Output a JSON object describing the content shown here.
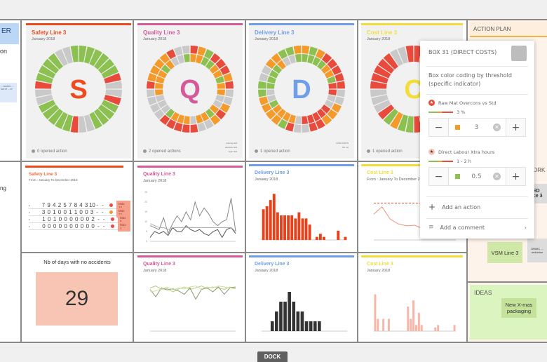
{
  "colors": {
    "G": "#8cc152",
    "R": "#e84b3c",
    "O": "#f39a2b",
    "X": "#c9c9c9",
    "safety": "#ee4a1e",
    "quality": "#d45a9a",
    "delivery": "#6f9ee8",
    "cost": "#f2dd3a"
  },
  "left_panel": {
    "header": "ER",
    "text1": "on",
    "text2": "ng",
    "note": "... screen ... out of ... er"
  },
  "donuts": [
    {
      "title": "Safety Line 3",
      "sub": "January 2018",
      "letter": "S",
      "color_key": "safety",
      "footer": "0 opened action",
      "legend": [
        "",
        "",
        ""
      ],
      "rings": [
        "GGGGGGRXXRGGGGXXRGGGGGXXRGGGGXXG"
      ]
    },
    {
      "title": "Quality Line 3",
      "sub": "January 2018",
      "letter": "Q",
      "color_key": "quality",
      "footer": "2 opened actions",
      "legend": [
        "training skill",
        "effective skill",
        "login skill"
      ],
      "rings": [
        "ROGRRRORXXOROXXRRRRRXXXXROOOORXX",
        "OOGGOOGOOXXOGOOXOOOGXXXOOOOGOXXG"
      ]
    },
    {
      "title": "Delivery Line 3",
      "sub": "January 2018",
      "letter": "D",
      "color_key": "delivery",
      "footer": "1 opened action",
      "legend": [
        "LATE PARTS",
        "OK 1st"
      ],
      "rings": [
        "OGORRRRRXXOOORRXXRGOOOOGGXXOOGGO",
        "GGGGOOGRRXXRRRRRXOOOOGXXGGGGOXXG"
      ]
    },
    {
      "title": "Cost Line 3",
      "sub": "January 2018",
      "letter": "C",
      "color_key": "cost",
      "footer": "1 opened action",
      "legend": [],
      "rings": [
        "ROORRXXXXXOOORRRGGOGRXXXRRRRRXXR"
      ]
    }
  ],
  "safety_table": {
    "title": "Safety Line 3",
    "sub": "From : January To December 2018",
    "rows": [
      [
        "7",
        "9",
        "4",
        "2",
        "5",
        "7",
        "8",
        "4",
        "3",
        "10",
        "-",
        "-"
      ],
      [
        "3",
        "0",
        "1",
        "0",
        "0",
        "1",
        "1",
        "0",
        "0",
        "3",
        "-",
        "-"
      ],
      [
        "1",
        "0",
        "1",
        "0",
        "0",
        "0",
        "0",
        "0",
        "0",
        "2",
        "-",
        "-"
      ],
      [
        "0",
        "0",
        "0",
        "0",
        "0",
        "0",
        "0",
        "0",
        "0",
        "0",
        "-",
        "-"
      ]
    ],
    "badges": [
      "Max 10",
      "Max 12",
      "Max 5",
      "Max 1"
    ]
  },
  "accidents": {
    "label": "Nb of days with no accidents",
    "value": "29"
  },
  "chart_data": [
    {
      "type": "line",
      "title": "Quality Line 3",
      "sub": "January 2018",
      "ylim": [
        0,
        25
      ],
      "ticks": [
        "0",
        "5",
        "10",
        "15",
        "20",
        "25"
      ],
      "series": [
        {
          "name": "s1",
          "values": [
            8,
            7,
            6,
            12,
            4,
            9,
            13,
            10,
            15,
            11,
            20,
            13,
            17,
            14,
            10,
            8,
            10,
            11,
            22,
            5
          ]
        },
        {
          "name": "s2",
          "values": [
            2,
            5,
            4,
            5,
            3,
            7,
            5,
            5,
            8,
            6,
            5,
            6,
            4,
            3,
            5,
            6,
            2,
            6,
            7,
            4
          ]
        },
        {
          "name": "s3",
          "values": [
            9,
            8,
            7,
            7,
            6,
            7,
            7,
            7,
            7,
            7,
            7,
            7,
            7,
            7,
            7,
            7,
            7,
            7,
            7,
            5
          ]
        }
      ]
    },
    {
      "type": "bar",
      "title": "Delivery Line 3",
      "sub": "January 2018",
      "ylim": [
        0,
        16
      ],
      "values": [
        10,
        11,
        13,
        15,
        9,
        8,
        8,
        8,
        8,
        7,
        9,
        7,
        7,
        5,
        0,
        1,
        2,
        1,
        0,
        0,
        0,
        3,
        0,
        1
      ]
    },
    {
      "type": "line",
      "title": "Cost Line 3",
      "sub": "From : January To December 2018",
      "ylim": [
        0,
        4
      ],
      "series": [
        {
          "name": "target",
          "values": [
            3,
            3,
            3,
            3,
            3,
            3,
            3,
            3,
            3,
            3,
            3
          ]
        },
        {
          "name": "actual",
          "values": [
            2.1,
            2.7,
            1.7,
            1.3,
            1.15,
            1.2,
            0.9,
            0.8,
            0.7,
            0.7,
            0.6
          ]
        }
      ]
    },
    {
      "type": "line",
      "title": "Quality Line 3",
      "sub": "January 2018",
      "ylim": [
        0,
        100
      ],
      "series": [
        {
          "name": "a",
          "values": [
            88,
            92,
            85,
            87,
            80,
            86,
            90,
            85,
            88,
            92,
            87,
            90,
            88,
            85,
            90,
            87
          ]
        },
        {
          "name": "b",
          "values": [
            85,
            70,
            88,
            84,
            86,
            82,
            75,
            88,
            65,
            85,
            88,
            80,
            90,
            75,
            88,
            90
          ]
        },
        {
          "name": "c",
          "values": [
            80,
            82,
            86,
            90,
            84,
            88,
            86,
            90,
            92,
            86,
            90,
            88,
            92,
            90,
            88,
            86
          ]
        }
      ]
    },
    {
      "type": "bar",
      "title": "Delivery Line 3",
      "sub": "January 2018",
      "ylim": [
        0,
        5
      ],
      "values": [
        0,
        0,
        1,
        2,
        3,
        3,
        4,
        3,
        2,
        2,
        1,
        1,
        1,
        1,
        0,
        0,
        0,
        0,
        0,
        0
      ]
    },
    {
      "type": "bar",
      "title": "Cost Line 3",
      "sub": "January 2018",
      "ylim": [
        0,
        4
      ],
      "values": [
        3,
        1,
        0,
        1,
        0,
        1,
        0,
        0,
        0,
        0,
        0,
        0,
        2,
        1,
        2.5,
        0.5,
        1.5,
        0.5,
        0,
        0,
        0,
        0,
        0.3,
        0.5,
        0,
        0,
        0,
        0,
        0,
        0.5
      ]
    }
  ],
  "popup": {
    "title": "BOX 31 (DIRECT COSTS)",
    "desc": "Box color coding by threshold (specific indicator)",
    "indicators": [
      {
        "name": "Raw Mat Overcons vs Std",
        "threshold": "3 %",
        "value": "3",
        "swatch": "#f39a2b"
      },
      {
        "name": "Direct Labour Xtra hours",
        "threshold": "1 - 2 h",
        "value": "0.5",
        "swatch": "#8cc152"
      }
    ],
    "minus": "−",
    "plus": "+",
    "add_action": "Add an action",
    "add_comment": "Add a comment"
  },
  "right_panel": {
    "action_plan": "ACTION PLAN",
    "work": "ORK",
    "sticky1": "ED\nace 3",
    "vsm": "VSM Line 3",
    "dmaic": "DMAIC ... reduction",
    "ideas": "IDEAS",
    "idea1": "New X-mas packaging"
  },
  "dock": "DOCK"
}
